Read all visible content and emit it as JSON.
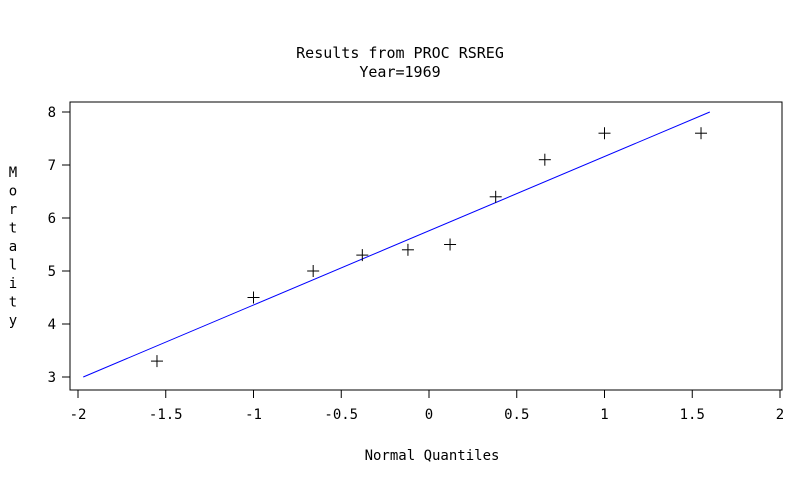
{
  "chart_data": {
    "type": "scatter",
    "title": "Results from PROC RSREG",
    "subtitle": "Year=1969",
    "xlabel": "Normal Quantiles",
    "ylabel": "Mortality",
    "xlim": [
      -2,
      2
    ],
    "ylim": [
      3,
      8
    ],
    "x_ticks": [
      -2,
      -1.5,
      -1,
      -0.5,
      0,
      0.5,
      1,
      1.5,
      2
    ],
    "x_tick_labels": [
      "-2",
      "-1.5",
      "-1",
      "-0.5",
      "0",
      "0.5",
      "1",
      "1.5",
      "2"
    ],
    "y_ticks": [
      3,
      4,
      5,
      6,
      7,
      8
    ],
    "y_tick_labels": [
      "3",
      "4",
      "5",
      "6",
      "7",
      "8"
    ],
    "grid": false,
    "marker": "plus",
    "points": [
      {
        "x": -1.55,
        "y": 3.3
      },
      {
        "x": -1.0,
        "y": 4.5
      },
      {
        "x": -0.66,
        "y": 5.0
      },
      {
        "x": -0.38,
        "y": 5.3
      },
      {
        "x": -0.12,
        "y": 5.4
      },
      {
        "x": 0.12,
        "y": 5.5
      },
      {
        "x": 0.38,
        "y": 6.4
      },
      {
        "x": 0.66,
        "y": 7.1
      },
      {
        "x": 1.0,
        "y": 7.6
      },
      {
        "x": 1.55,
        "y": 7.6
      }
    ],
    "fit_line": {
      "x": [
        -1.97,
        1.6
      ],
      "y": [
        3.0,
        8.0
      ],
      "color": "#0000ff"
    },
    "colors": {
      "points": "#000000",
      "fit_line": "#0000ff",
      "axes": "#000000"
    }
  }
}
